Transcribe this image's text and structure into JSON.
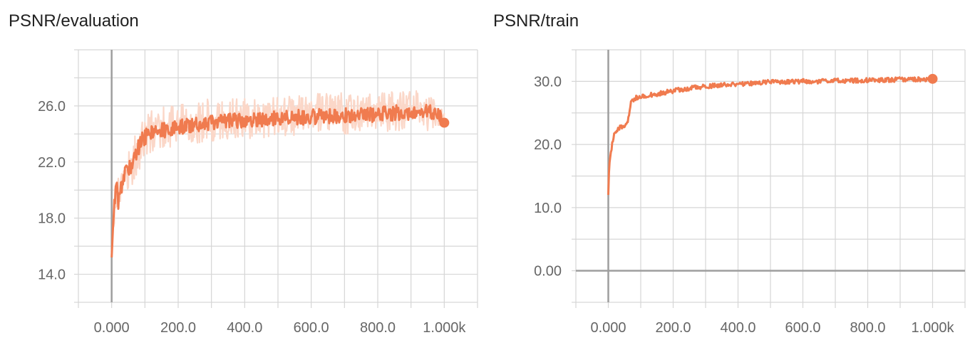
{
  "panels": [
    {
      "title": "PSNR/evaluation"
    },
    {
      "title": "PSNR/train"
    }
  ],
  "colors": {
    "smoothed": "#f07b4f",
    "raw": "#fbd7c8",
    "grid": "#d6d6d6",
    "axis": "#9e9e9e"
  },
  "chart_data": [
    {
      "type": "line",
      "title": "PSNR/evaluation",
      "xlabel": "",
      "ylabel": "",
      "xlim": [
        -100,
        1100
      ],
      "ylim": [
        12,
        30
      ],
      "xticks": [
        0,
        200,
        400,
        600,
        800,
        1000
      ],
      "xtick_labels": [
        "0.000",
        "200.0",
        "400.0",
        "600.0",
        "800.0",
        "1.000k"
      ],
      "yticks": [
        14,
        18,
        22,
        26
      ],
      "ytick_labels": [
        "14.0",
        "18.0",
        "22.0",
        "26.0"
      ],
      "grid": true,
      "series": [
        {
          "role": "smoothed",
          "x": [
            0,
            5,
            10,
            15,
            20,
            25,
            30,
            40,
            50,
            60,
            70,
            80,
            90,
            100,
            120,
            140,
            160,
            180,
            200,
            230,
            260,
            300,
            350,
            400,
            450,
            500,
            550,
            600,
            650,
            700,
            750,
            800,
            850,
            900,
            950,
            990,
            1000
          ],
          "y": [
            15.2,
            17.8,
            19.5,
            20.2,
            19.2,
            19.8,
            20.3,
            21.2,
            21.5,
            21.8,
            22.3,
            23.0,
            23.5,
            23.8,
            24.0,
            24.2,
            24.3,
            24.4,
            24.5,
            24.6,
            24.7,
            24.8,
            24.9,
            25.0,
            25.0,
            25.1,
            25.2,
            25.2,
            25.3,
            25.3,
            25.4,
            25.4,
            25.5,
            25.5,
            25.6,
            25.4,
            24.8
          ]
        },
        {
          "role": "raw",
          "x": [
            0,
            5,
            10,
            20,
            30,
            40,
            50,
            60,
            70,
            80,
            90,
            100,
            120,
            140,
            160,
            180,
            200,
            250,
            300,
            350,
            400,
            450,
            500,
            550,
            600,
            650,
            700,
            750,
            800,
            850,
            900,
            950,
            1000
          ],
          "ylow": [
            15.0,
            16.8,
            17.8,
            18.2,
            18.8,
            19.5,
            20.0,
            20.2,
            20.5,
            21.0,
            21.5,
            22.0,
            22.5,
            22.8,
            23.0,
            23.0,
            23.2,
            23.3,
            23.4,
            23.5,
            23.6,
            23.7,
            23.8,
            23.8,
            23.9,
            23.9,
            24.0,
            24.0,
            24.0,
            24.1,
            24.1,
            24.1,
            24.5
          ],
          "yhigh": [
            16.0,
            19.0,
            20.8,
            21.5,
            22.0,
            22.5,
            23.0,
            23.5,
            24.0,
            24.5,
            25.0,
            25.5,
            25.8,
            26.0,
            26.1,
            26.2,
            26.3,
            26.4,
            26.5,
            26.6,
            26.6,
            26.7,
            26.8,
            26.8,
            26.9,
            26.9,
            27.0,
            27.0,
            27.0,
            27.1,
            27.1,
            27.1,
            25.5
          ]
        }
      ]
    },
    {
      "type": "line",
      "title": "PSNR/train",
      "xlabel": "",
      "ylabel": "",
      "xlim": [
        -100,
        1100
      ],
      "ylim": [
        -5,
        35
      ],
      "xticks": [
        0,
        200,
        400,
        600,
        800,
        1000
      ],
      "xtick_labels": [
        "0.000",
        "200.0",
        "400.0",
        "600.0",
        "800.0",
        "1.000k"
      ],
      "yticks": [
        0,
        10,
        20,
        30
      ],
      "ytick_labels": [
        "0.00",
        "10.0",
        "20.0",
        "30.0"
      ],
      "grid": true,
      "series": [
        {
          "role": "smoothed",
          "x": [
            0,
            2,
            5,
            10,
            15,
            20,
            30,
            40,
            50,
            60,
            65,
            70,
            80,
            100,
            120,
            150,
            200,
            250,
            300,
            350,
            400,
            450,
            500,
            550,
            600,
            650,
            700,
            750,
            800,
            850,
            900,
            950,
            1000
          ],
          "y": [
            12.0,
            15.5,
            18.0,
            19.5,
            21.0,
            22.0,
            22.5,
            22.8,
            23.0,
            23.5,
            25.0,
            26.5,
            27.3,
            27.6,
            27.8,
            28.0,
            28.5,
            28.9,
            29.2,
            29.4,
            29.5,
            29.7,
            29.9,
            29.9,
            30.0,
            30.0,
            30.1,
            30.1,
            30.2,
            30.2,
            30.3,
            30.3,
            30.4
          ]
        }
      ]
    }
  ]
}
